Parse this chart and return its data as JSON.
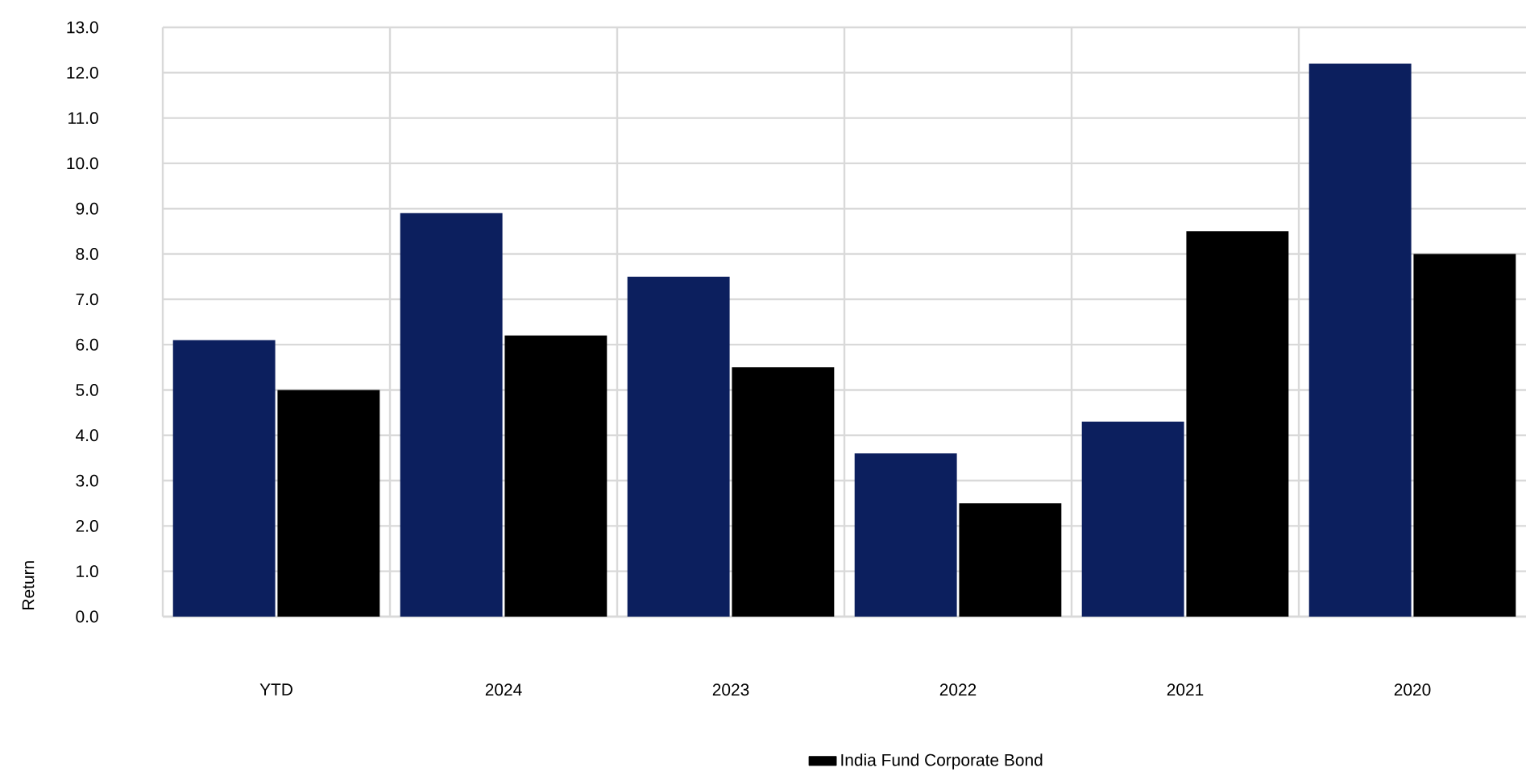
{
  "chart_data": {
    "type": "bar",
    "ylabel": "Return",
    "categories": [
      "YTD",
      "2024",
      "2023",
      "2022",
      "2021",
      "2020"
    ],
    "series": [
      {
        "color": "#0c1f5e",
        "values": [
          6.1,
          8.9,
          7.5,
          3.6,
          4.3,
          12.2
        ]
      },
      {
        "name": "India Fund Corporate Bond",
        "color": "#000000",
        "values": [
          5.0,
          6.2,
          5.5,
          2.5,
          8.5,
          8.0
        ]
      }
    ],
    "ylim": [
      0,
      13
    ],
    "yticks": [
      {
        "value": 0,
        "label": "0.0"
      },
      {
        "value": 1,
        "label": "1.0"
      },
      {
        "value": 2,
        "label": "2.0"
      },
      {
        "value": 3,
        "label": "3.0"
      },
      {
        "value": 4,
        "label": "4.0"
      },
      {
        "value": 5,
        "label": "5.0"
      },
      {
        "value": 6,
        "label": "6.0"
      },
      {
        "value": 7,
        "label": "7.0"
      },
      {
        "value": 8,
        "label": "8.0"
      },
      {
        "value": 9,
        "label": "9.0"
      },
      {
        "value": 10,
        "label": "10.0"
      },
      {
        "value": 11,
        "label": "11.0"
      },
      {
        "value": 12,
        "label": "12.0"
      },
      {
        "value": 13,
        "label": "13.0"
      }
    ],
    "grid": true,
    "legend": "bottom"
  }
}
